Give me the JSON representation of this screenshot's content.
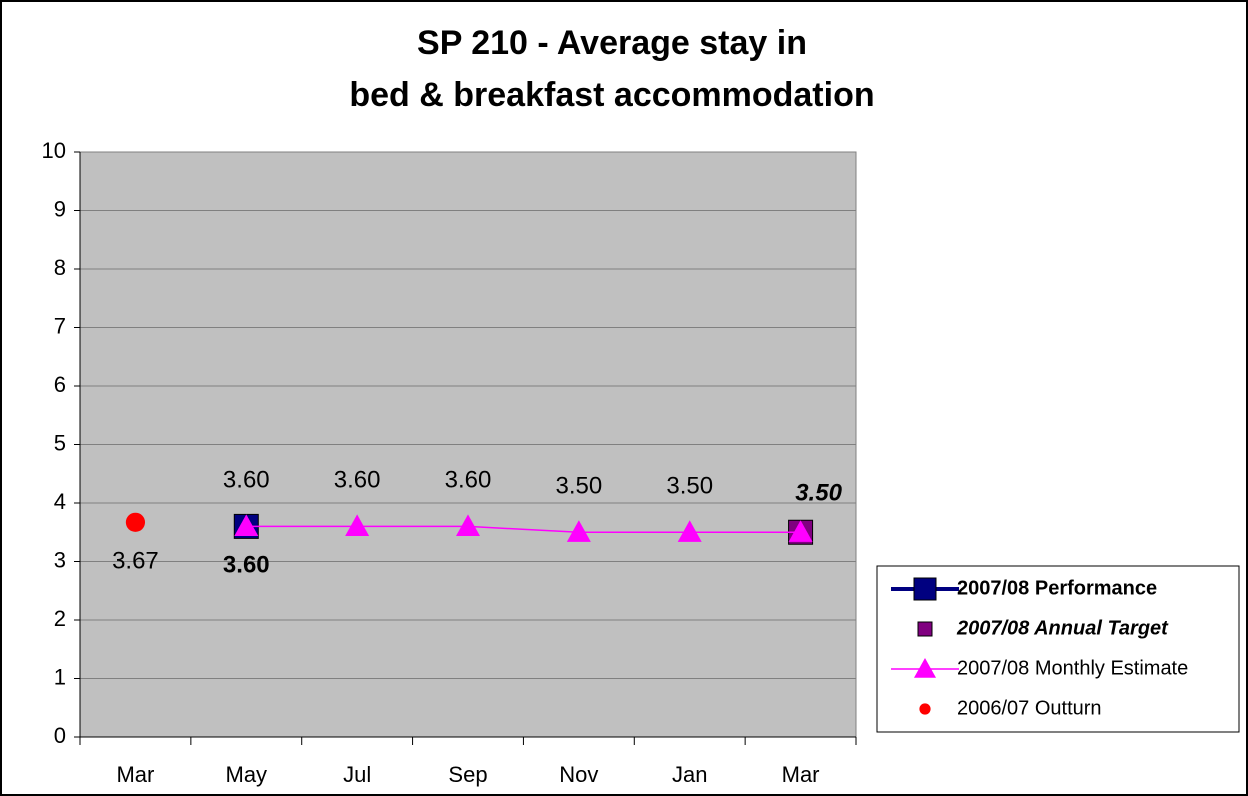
{
  "chart_data": {
    "type": "line",
    "title": [
      "SP 210 - Average stay in",
      "bed & breakfast accommodation"
    ],
    "categories": [
      "Mar",
      "May",
      "Jul",
      "Sep",
      "Nov",
      "Jan",
      "Mar"
    ],
    "ylim": [
      0,
      10
    ],
    "yticks": [
      0,
      1,
      2,
      3,
      4,
      5,
      6,
      7,
      8,
      9,
      10
    ],
    "grid": true,
    "legend": "right",
    "series": [
      {
        "name": "2007/08 Performance",
        "color": "#000080",
        "marker": "square",
        "line": true,
        "values": [
          null,
          3.6,
          null,
          null,
          null,
          null,
          null
        ],
        "value_labels": [
          null,
          "3.60",
          null,
          null,
          null,
          null,
          null
        ]
      },
      {
        "name": "2007/08 Annual Target",
        "color": "#800080",
        "marker": "square",
        "line": false,
        "values": [
          null,
          null,
          null,
          null,
          null,
          null,
          3.5
        ],
        "value_labels": [
          null,
          null,
          null,
          null,
          null,
          null,
          "3.50"
        ]
      },
      {
        "name": "2007/08 Monthly Estimate",
        "color": "#ff00ff",
        "marker": "triangle",
        "line": true,
        "values": [
          null,
          3.6,
          3.6,
          3.6,
          3.5,
          3.5,
          3.5
        ],
        "value_labels": [
          null,
          "3.60",
          "3.60",
          "3.60",
          "3.50",
          "3.50",
          null
        ]
      },
      {
        "name": "2006/07 Outturn",
        "color": "#ff0000",
        "marker": "circle",
        "line": false,
        "values": [
          3.67,
          null,
          null,
          null,
          null,
          null,
          null
        ],
        "value_labels": [
          "3.67",
          null,
          null,
          null,
          null,
          null,
          null
        ]
      }
    ]
  }
}
